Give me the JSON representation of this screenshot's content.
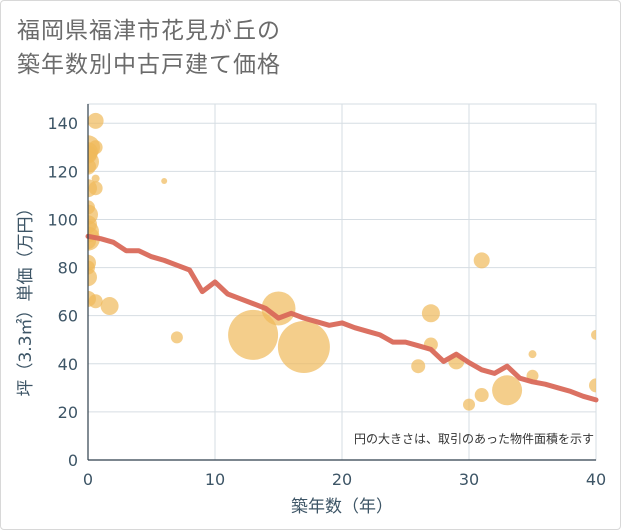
{
  "title_lines": [
    "福岡県福津市花見が丘の",
    "築年数別中古戸建て価格"
  ],
  "chart_data": {
    "type": "scatter",
    "title": "福岡県福津市花見が丘の築年数別中古戸建て価格",
    "xlabel": "築年数（年）",
    "ylabel": "坪（3.3㎡）単価（万円）",
    "xlim": [
      0,
      40
    ],
    "ylim": [
      0,
      148
    ],
    "xticks": [
      0,
      10,
      20,
      30,
      40
    ],
    "yticks": [
      0,
      20,
      40,
      60,
      80,
      100,
      120,
      140
    ],
    "grid": true,
    "note": "円の大きさは、取引のあった物件面積を示す",
    "colors": {
      "bubble": "#f0b95a",
      "line": "#d9695a"
    },
    "bubbles": [
      {
        "x": 0,
        "y": 130,
        "size": 12
      },
      {
        "x": 0,
        "y": 128,
        "size": 10
      },
      {
        "x": 0,
        "y": 127,
        "size": 9
      },
      {
        "x": 0,
        "y": 124,
        "size": 11
      },
      {
        "x": 0,
        "y": 122,
        "size": 8
      },
      {
        "x": 0,
        "y": 113,
        "size": 9
      },
      {
        "x": 0,
        "y": 105,
        "size": 7
      },
      {
        "x": 0,
        "y": 102,
        "size": 10
      },
      {
        "x": 0,
        "y": 98,
        "size": 9
      },
      {
        "x": 0,
        "y": 95,
        "size": 11
      },
      {
        "x": 0,
        "y": 92,
        "size": 12
      },
      {
        "x": 0,
        "y": 91,
        "size": 8
      },
      {
        "x": 0,
        "y": 82,
        "size": 8
      },
      {
        "x": 0,
        "y": 80,
        "size": 7
      },
      {
        "x": 0,
        "y": 76,
        "size": 9
      },
      {
        "x": 0,
        "y": 67,
        "size": 8
      },
      {
        "x": 0.6,
        "y": 141,
        "size": 8
      },
      {
        "x": 0.6,
        "y": 130,
        "size": 7
      },
      {
        "x": 0.6,
        "y": 117,
        "size": 4
      },
      {
        "x": 0.6,
        "y": 113,
        "size": 7
      },
      {
        "x": 0.6,
        "y": 66,
        "size": 7
      },
      {
        "x": 1.7,
        "y": 64,
        "size": 9
      },
      {
        "x": 6,
        "y": 116,
        "size": 3
      },
      {
        "x": 7,
        "y": 51,
        "size": 6
      },
      {
        "x": 13,
        "y": 52,
        "size": 25
      },
      {
        "x": 15,
        "y": 63,
        "size": 17
      },
      {
        "x": 17,
        "y": 47,
        "size": 26
      },
      {
        "x": 26,
        "y": 39,
        "size": 7
      },
      {
        "x": 27,
        "y": 61,
        "size": 9
      },
      {
        "x": 27,
        "y": 48,
        "size": 7
      },
      {
        "x": 29,
        "y": 41,
        "size": 8
      },
      {
        "x": 30,
        "y": 23,
        "size": 6
      },
      {
        "x": 31,
        "y": 83,
        "size": 8
      },
      {
        "x": 31,
        "y": 27,
        "size": 7
      },
      {
        "x": 33,
        "y": 29,
        "size": 15
      },
      {
        "x": 35,
        "y": 44,
        "size": 4
      },
      {
        "x": 35,
        "y": 35,
        "size": 6
      },
      {
        "x": 40,
        "y": 52,
        "size": 5
      },
      {
        "x": 40,
        "y": 31,
        "size": 7
      }
    ],
    "trend": {
      "x": [
        0,
        1,
        2,
        3,
        4,
        5,
        6,
        7,
        8,
        9,
        10,
        11,
        12,
        13,
        14,
        15,
        16,
        17,
        18,
        19,
        20,
        21,
        22,
        23,
        24,
        25,
        26,
        27,
        28,
        29,
        30,
        31,
        32,
        33,
        34,
        35,
        36,
        37,
        38,
        39,
        40
      ],
      "y": [
        93,
        92,
        90.5,
        87,
        87,
        84.5,
        83,
        81,
        79,
        70,
        74,
        69,
        67,
        65,
        63,
        59,
        61,
        59,
        57.5,
        56,
        57,
        55,
        53.5,
        52,
        49,
        49,
        47.5,
        46,
        41,
        44,
        40.5,
        37.5,
        36,
        39,
        34,
        32.5,
        31.5,
        30,
        28.5,
        26.5,
        25
      ]
    }
  }
}
